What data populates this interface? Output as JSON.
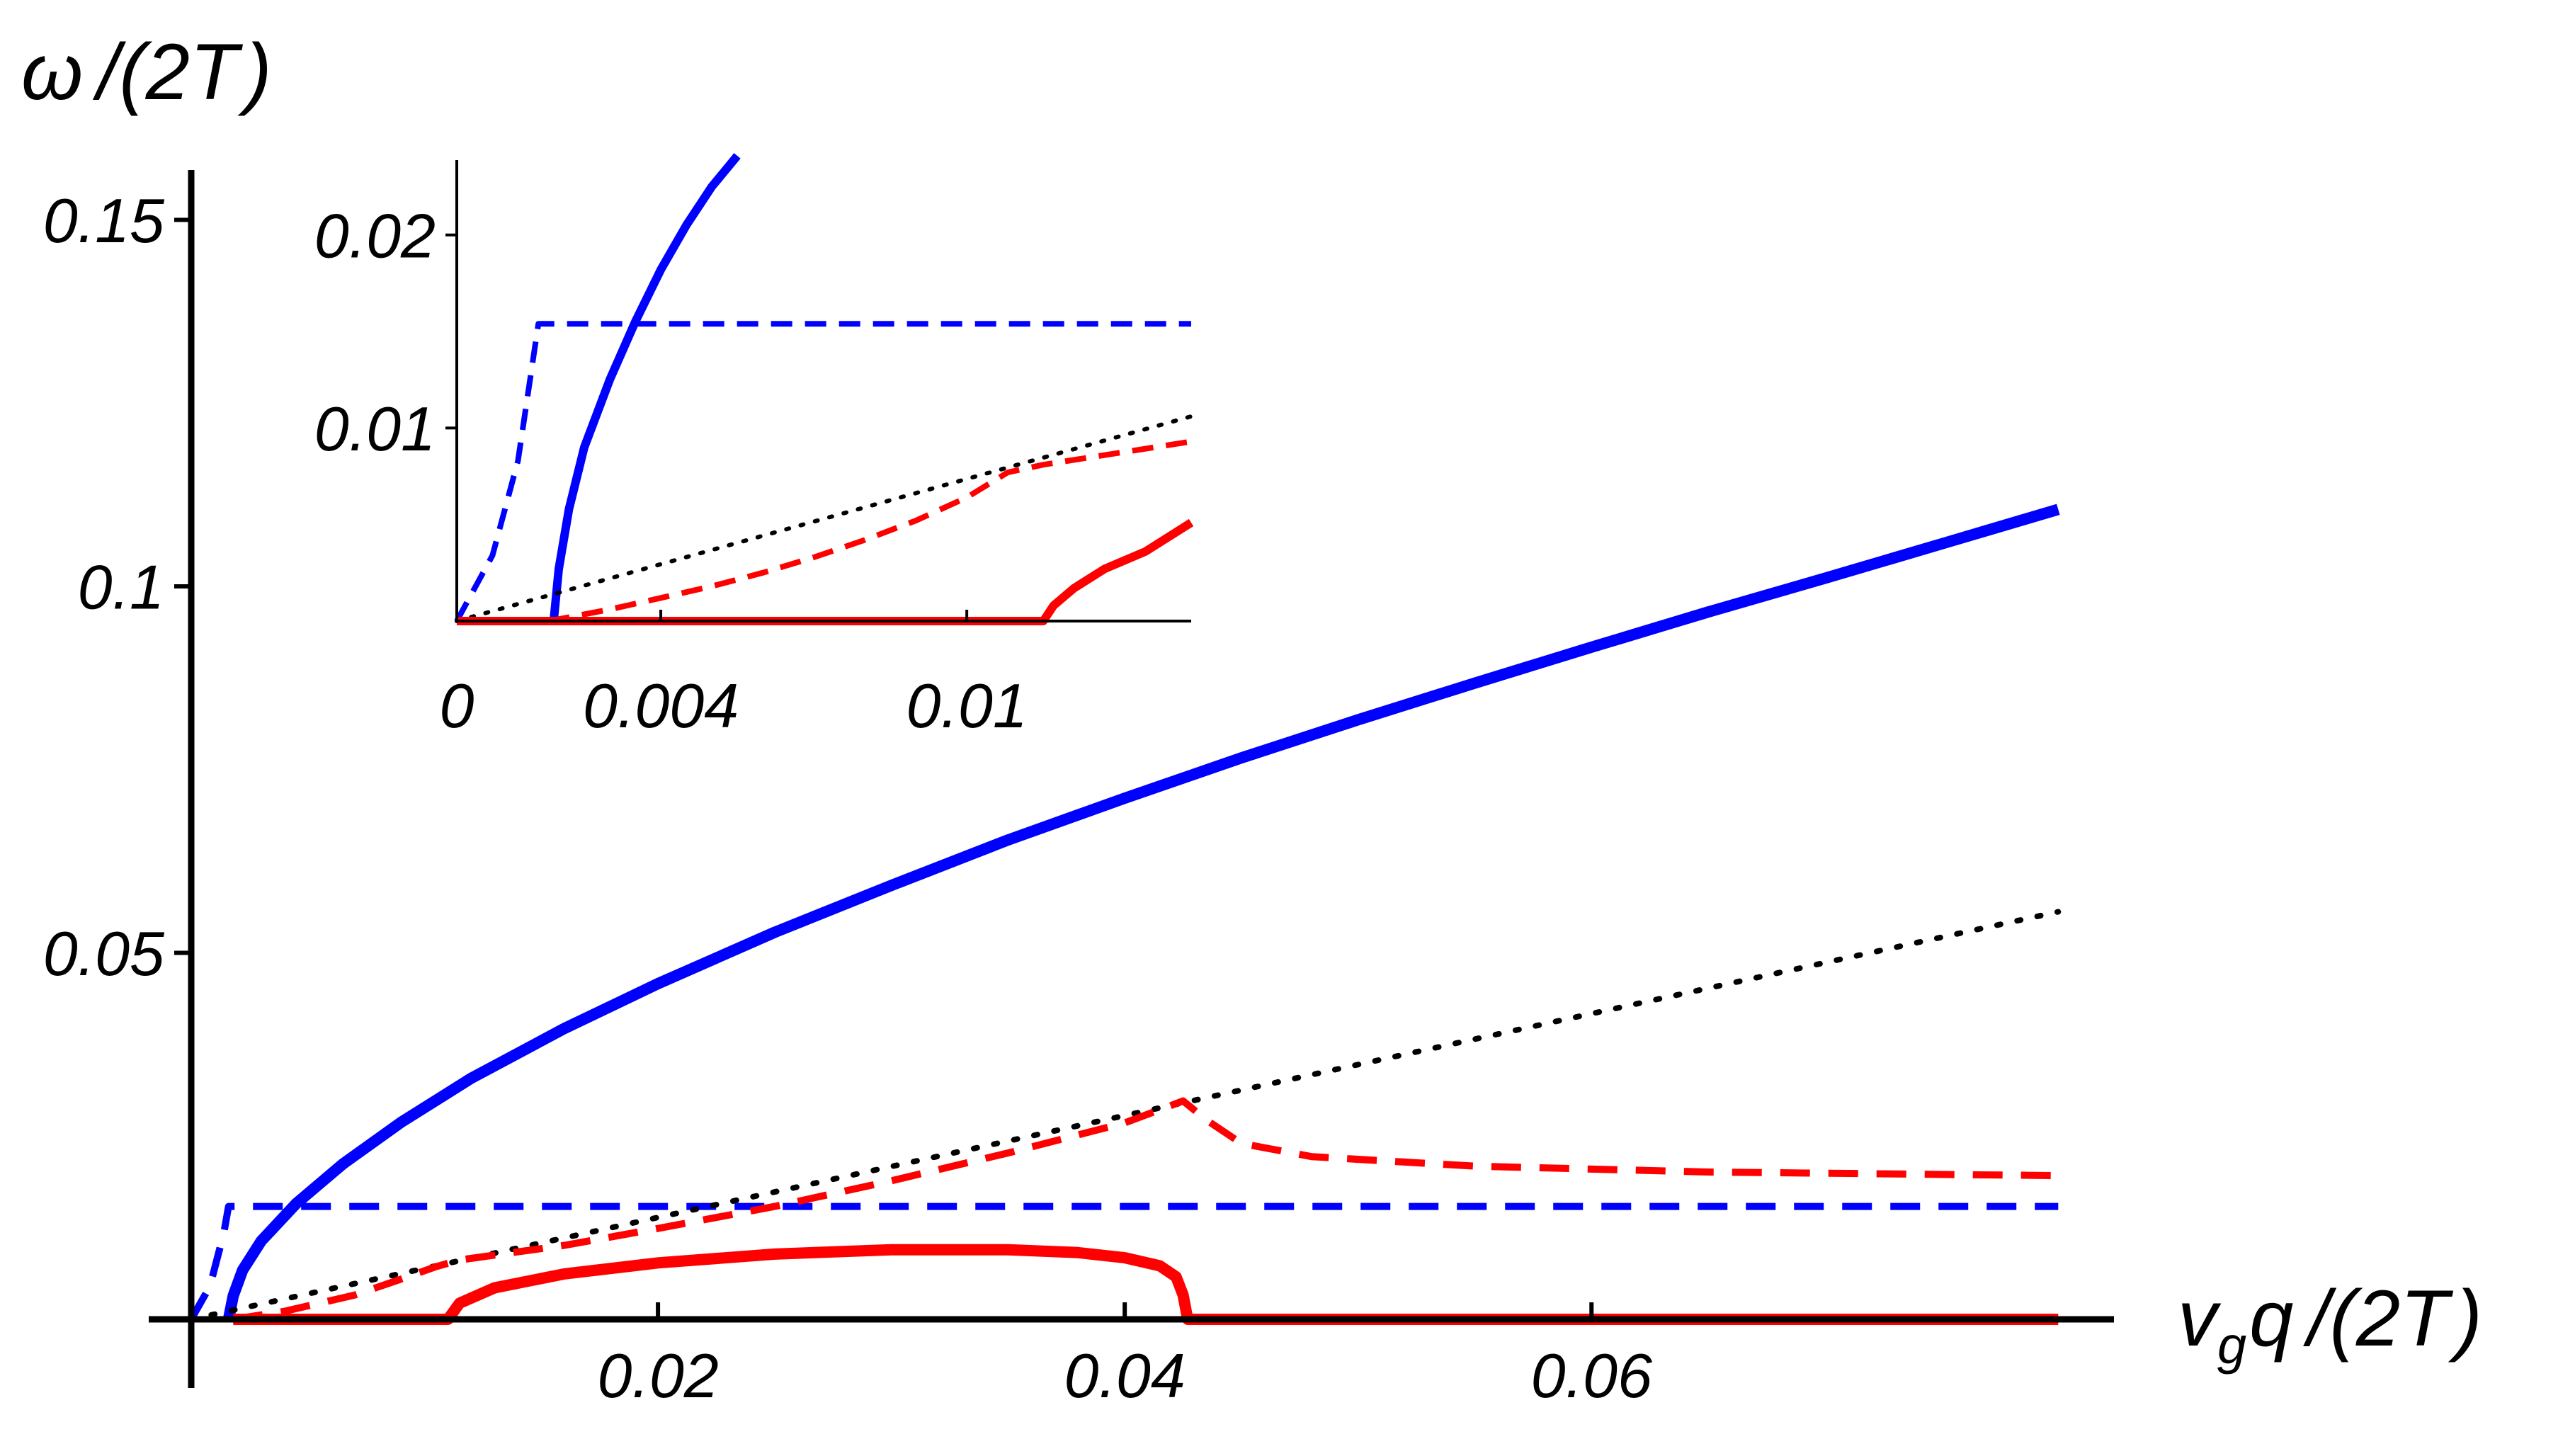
{
  "chart_data": [
    {
      "type": "line",
      "role": "main",
      "xlabel": "v_g q /(2T)",
      "ylabel": "ω /(2T)",
      "xlim": [
        0,
        0.0809
      ],
      "ylim": [
        0,
        0.18
      ],
      "x_ticks": [
        {
          "value": 0.02,
          "label": "0.02"
        },
        {
          "value": 0.04,
          "label": "0.04"
        },
        {
          "value": 0.06,
          "label": "0.06"
        }
      ],
      "y_ticks": [
        {
          "value": 0.05,
          "label": "0.05"
        },
        {
          "value": 0.1,
          "label": "0.1"
        },
        {
          "value": 0.15,
          "label": "0.15"
        }
      ],
      "grid": false,
      "legend": "none",
      "series": [
        {
          "color": "#0000ff",
          "style": "solid",
          "points": [
            [
              0.0016,
              0
            ],
            [
              0.0018,
              0.0032
            ],
            [
              0.0022,
              0.0067
            ],
            [
              0.003,
              0.0107
            ],
            [
              0.0045,
              0.0158
            ],
            [
              0.0065,
              0.0212
            ],
            [
              0.009,
              0.0269
            ],
            [
              0.012,
              0.0329
            ],
            [
              0.016,
              0.0397
            ],
            [
              0.02,
              0.0458
            ],
            [
              0.025,
              0.0528
            ],
            [
              0.03,
              0.0592
            ],
            [
              0.035,
              0.0654
            ],
            [
              0.04,
              0.0711
            ],
            [
              0.045,
              0.0766
            ],
            [
              0.05,
              0.0818
            ],
            [
              0.055,
              0.0868
            ],
            [
              0.06,
              0.0917
            ],
            [
              0.065,
              0.0965
            ],
            [
              0.07,
              0.1011
            ],
            [
              0.075,
              0.1058
            ],
            [
              0.08,
              0.1105
            ]
          ]
        },
        {
          "color": "#0000ff",
          "style": "dashed",
          "points": [
            [
              0,
              0
            ],
            [
              0.0008,
              0.0045
            ],
            [
              0.0014,
              0.0118
            ],
            [
              0.0016,
              0.0154
            ],
            [
              0.08,
              0.0154
            ]
          ]
        },
        {
          "color": "#000000",
          "style": "dotted",
          "points": [
            [
              0,
              0
            ],
            [
              0.08,
              0.0556
            ]
          ]
        },
        {
          "color": "#ff0000",
          "style": "dashed",
          "points": [
            [
              0.0018,
              0
            ],
            [
              0.004,
              0.0011
            ],
            [
              0.007,
              0.0033
            ],
            [
              0.009,
              0.0055
            ],
            [
              0.0105,
              0.0072
            ],
            [
              0.0115,
              0.0081
            ],
            [
              0.016,
              0.0101
            ],
            [
              0.02,
              0.0124
            ],
            [
              0.025,
              0.0154
            ],
            [
              0.03,
              0.0189
            ],
            [
              0.035,
              0.0227
            ],
            [
              0.04,
              0.0268
            ],
            [
              0.0425,
              0.0298
            ],
            [
              0.0435,
              0.0272
            ],
            [
              0.045,
              0.024
            ],
            [
              0.048,
              0.0222
            ],
            [
              0.055,
              0.0209
            ],
            [
              0.065,
              0.0201
            ],
            [
              0.08,
              0.0196
            ]
          ]
        },
        {
          "color": "#ff0000",
          "style": "solid",
          "points": [
            [
              0.0018,
              0
            ],
            [
              0.011,
              0
            ],
            [
              0.0115,
              0.0022
            ],
            [
              0.013,
              0.0043
            ],
            [
              0.016,
              0.0062
            ],
            [
              0.02,
              0.0077
            ],
            [
              0.025,
              0.0089
            ],
            [
              0.03,
              0.0095
            ],
            [
              0.035,
              0.0095
            ],
            [
              0.038,
              0.0091
            ],
            [
              0.04,
              0.0084
            ],
            [
              0.0415,
              0.0073
            ],
            [
              0.0422,
              0.0058
            ],
            [
              0.0425,
              0.0033
            ],
            [
              0.0427,
              0
            ],
            [
              0.08,
              0
            ]
          ]
        }
      ]
    },
    {
      "type": "line",
      "role": "inset",
      "xlim": [
        0,
        0.0144
      ],
      "ylim": [
        0,
        0.0241
      ],
      "x_ticks": [
        {
          "value": 0,
          "label": "0"
        },
        {
          "value": 0.004,
          "label": "0.004"
        },
        {
          "value": 0.01,
          "label": "0.01"
        }
      ],
      "y_ticks": [
        {
          "value": 0.01,
          "label": "0.01"
        },
        {
          "value": 0.02,
          "label": "0.02"
        }
      ],
      "grid": false,
      "legend": "none",
      "series": [
        {
          "color": "#0000ff",
          "style": "solid",
          "points": [
            [
              0.0019,
              0
            ],
            [
              0.002,
              0.0027
            ],
            [
              0.0022,
              0.0058
            ],
            [
              0.0025,
              0.009
            ],
            [
              0.003,
              0.0125
            ],
            [
              0.0035,
              0.0155
            ],
            [
              0.004,
              0.0182
            ],
            [
              0.0045,
              0.0205
            ],
            [
              0.005,
              0.0225
            ],
            [
              0.0055,
              0.0241
            ]
          ]
        },
        {
          "color": "#0000ff",
          "style": "dashed",
          "points": [
            [
              0,
              0
            ],
            [
              0.0007,
              0.0034
            ],
            [
              0.0012,
              0.0083
            ],
            [
              0.0016,
              0.0154
            ],
            [
              0.0144,
              0.0154
            ]
          ]
        },
        {
          "color": "#000000",
          "style": "dotted",
          "points": [
            [
              0,
              0
            ],
            [
              0.0144,
              0.0106
            ]
          ]
        },
        {
          "color": "#ff0000",
          "style": "dashed",
          "points": [
            [
              0.0018,
              0
            ],
            [
              0.003,
              0.0006
            ],
            [
              0.004,
              0.0012
            ],
            [
              0.005,
              0.0018
            ],
            [
              0.006,
              0.0025
            ],
            [
              0.007,
              0.0033
            ],
            [
              0.008,
              0.0042
            ],
            [
              0.009,
              0.0052
            ],
            [
              0.01,
              0.0064
            ],
            [
              0.0108,
              0.0077
            ],
            [
              0.0115,
              0.0081
            ],
            [
              0.0144,
              0.0093
            ]
          ]
        },
        {
          "color": "#ff0000",
          "style": "solid",
          "points": [
            [
              0,
              0
            ],
            [
              0.0115,
              0
            ],
            [
              0.0117,
              0.0008
            ],
            [
              0.0121,
              0.0017
            ],
            [
              0.0127,
              0.0027
            ],
            [
              0.0135,
              0.0036
            ],
            [
              0.0144,
              0.0051
            ]
          ]
        }
      ]
    }
  ]
}
